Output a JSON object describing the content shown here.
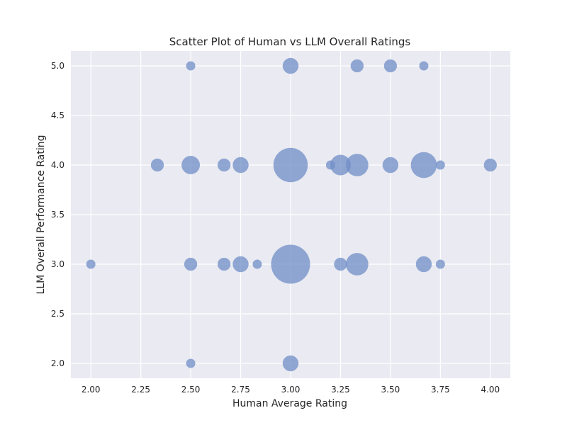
{
  "chart_data": {
    "type": "scatter",
    "title": "Scatter Plot of Human vs LLM Overall Ratings",
    "xlabel": "Human Average Rating",
    "ylabel": "LLM Overall Performance Rating",
    "xlim": [
      1.9,
      4.1
    ],
    "ylim": [
      1.85,
      5.15
    ],
    "grid": true,
    "x_ticks": [
      2.0,
      2.25,
      2.5,
      2.75,
      3.0,
      3.25,
      3.5,
      3.75,
      4.0
    ],
    "x_tick_labels": [
      "2.00",
      "2.25",
      "2.50",
      "2.75",
      "3.00",
      "3.25",
      "3.50",
      "3.75",
      "4.00"
    ],
    "y_ticks": [
      2.0,
      2.5,
      3.0,
      3.5,
      4.0,
      4.5,
      5.0
    ],
    "y_tick_labels": [
      "2.0",
      "2.5",
      "3.0",
      "3.5",
      "4.0",
      "4.5",
      "5.0"
    ],
    "marker_color": "#6f8dc7",
    "background_color": "#eaeaf2",
    "grid_color": "#ffffff",
    "points": [
      {
        "x": 2.5,
        "y": 5.0,
        "count": 1
      },
      {
        "x": 3.0,
        "y": 5.0,
        "count": 3
      },
      {
        "x": 3.333,
        "y": 5.0,
        "count": 2
      },
      {
        "x": 3.5,
        "y": 5.0,
        "count": 2
      },
      {
        "x": 3.667,
        "y": 5.0,
        "count": 1
      },
      {
        "x": 2.333,
        "y": 4.0,
        "count": 2
      },
      {
        "x": 2.5,
        "y": 4.0,
        "count": 4
      },
      {
        "x": 2.667,
        "y": 4.0,
        "count": 2
      },
      {
        "x": 2.75,
        "y": 4.0,
        "count": 3
      },
      {
        "x": 3.0,
        "y": 4.0,
        "count": 14
      },
      {
        "x": 3.2,
        "y": 4.0,
        "count": 1
      },
      {
        "x": 3.25,
        "y": 4.0,
        "count": 5
      },
      {
        "x": 3.333,
        "y": 4.0,
        "count": 6
      },
      {
        "x": 3.5,
        "y": 4.0,
        "count": 3
      },
      {
        "x": 3.667,
        "y": 4.0,
        "count": 8
      },
      {
        "x": 3.75,
        "y": 4.0,
        "count": 1
      },
      {
        "x": 4.0,
        "y": 4.0,
        "count": 2
      },
      {
        "x": 2.0,
        "y": 3.0,
        "count": 1
      },
      {
        "x": 2.5,
        "y": 3.0,
        "count": 2
      },
      {
        "x": 2.667,
        "y": 3.0,
        "count": 2
      },
      {
        "x": 2.75,
        "y": 3.0,
        "count": 3
      },
      {
        "x": 2.833,
        "y": 3.0,
        "count": 1
      },
      {
        "x": 3.0,
        "y": 3.0,
        "count": 18
      },
      {
        "x": 3.25,
        "y": 3.0,
        "count": 2
      },
      {
        "x": 3.333,
        "y": 3.0,
        "count": 6
      },
      {
        "x": 3.667,
        "y": 3.0,
        "count": 3
      },
      {
        "x": 3.75,
        "y": 3.0,
        "count": 1
      },
      {
        "x": 2.5,
        "y": 2.0,
        "count": 1
      },
      {
        "x": 3.0,
        "y": 2.0,
        "count": 3
      }
    ]
  }
}
